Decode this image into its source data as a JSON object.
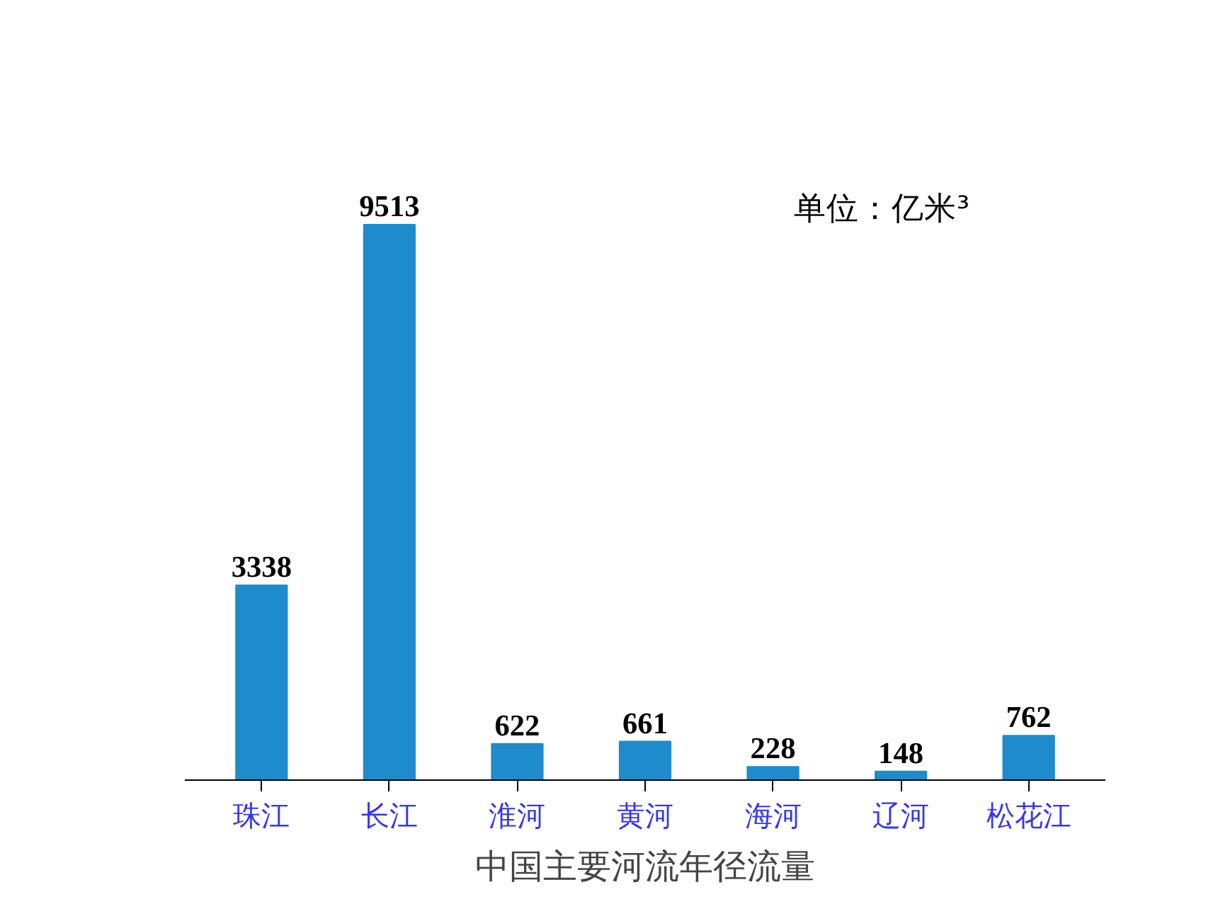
{
  "chart_data": {
    "type": "bar",
    "title": "中国主要河流年径流量",
    "annotations": [
      "单位：亿米³"
    ],
    "categories": [
      "珠江",
      "长江",
      "淮河",
      "黄河",
      "海河",
      "辽河",
      "松花江"
    ],
    "values": [
      3338,
      9513,
      622,
      661,
      228,
      148,
      762
    ],
    "color": "#1e8ccc",
    "data_labels": true,
    "grid": false,
    "tick_labels": "x"
  }
}
